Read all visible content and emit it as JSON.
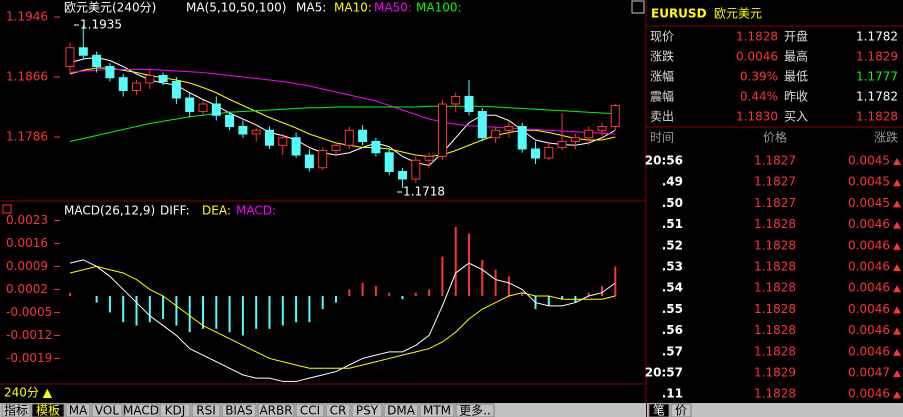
{
  "chart": {
    "title": "欧元美元(240分)",
    "indicator": "MA(5,10,50,100)",
    "ma_labels": [
      "MA5:",
      "MA10:",
      "MA50:",
      "MA100:"
    ],
    "yticks": [
      1.1946,
      1.1866,
      1.1786
    ],
    "high_label": "1.1935",
    "low_label": "1.1718",
    "candles": [
      [
        1.188,
        1.1912,
        1.187,
        1.1905
      ],
      [
        1.1905,
        1.1935,
        1.189,
        1.1895
      ],
      [
        1.1895,
        1.19,
        1.1872,
        1.188
      ],
      [
        1.188,
        1.1885,
        1.186,
        1.1865
      ],
      [
        1.1865,
        1.187,
        1.184,
        1.1848
      ],
      [
        1.1848,
        1.1862,
        1.1842,
        1.1858
      ],
      [
        1.1858,
        1.1875,
        1.185,
        1.1868
      ],
      [
        1.1868,
        1.1872,
        1.1855,
        1.186
      ],
      [
        1.186,
        1.1866,
        1.183,
        1.1838
      ],
      [
        1.1838,
        1.1845,
        1.1812,
        1.182
      ],
      [
        1.182,
        1.1835,
        1.1815,
        1.183
      ],
      [
        1.183,
        1.184,
        1.1808,
        1.1815
      ],
      [
        1.1815,
        1.182,
        1.1795,
        1.18
      ],
      [
        1.18,
        1.1808,
        1.1785,
        1.179
      ],
      [
        1.179,
        1.1798,
        1.178,
        1.1795
      ],
      [
        1.1795,
        1.18,
        1.177,
        1.1775
      ],
      [
        1.1775,
        1.179,
        1.1762,
        1.1785
      ],
      [
        1.1785,
        1.1792,
        1.1758,
        1.1762
      ],
      [
        1.1762,
        1.177,
        1.174,
        1.1745
      ],
      [
        1.1745,
        1.1772,
        1.1742,
        1.1768
      ],
      [
        1.1768,
        1.178,
        1.176,
        1.1775
      ],
      [
        1.1775,
        1.18,
        1.177,
        1.1795
      ],
      [
        1.1795,
        1.1802,
        1.1775,
        1.178
      ],
      [
        1.178,
        1.1785,
        1.176,
        1.1765
      ],
      [
        1.1765,
        1.177,
        1.1735,
        1.174
      ],
      [
        1.174,
        1.1745,
        1.1718,
        1.173
      ],
      [
        1.173,
        1.176,
        1.1725,
        1.1755
      ],
      [
        1.1755,
        1.1765,
        1.1745,
        1.176
      ],
      [
        1.176,
        1.1835,
        1.1755,
        1.183
      ],
      [
        1.183,
        1.1845,
        1.182,
        1.184
      ],
      [
        1.184,
        1.1862,
        1.1815,
        1.182
      ],
      [
        1.182,
        1.1825,
        1.178,
        1.1785
      ],
      [
        1.1785,
        1.18,
        1.1778,
        1.1795
      ],
      [
        1.1795,
        1.1808,
        1.1785,
        1.18
      ],
      [
        1.18,
        1.1805,
        1.1765,
        1.177
      ],
      [
        1.177,
        1.178,
        1.175,
        1.1758
      ],
      [
        1.1758,
        1.1778,
        1.1755,
        1.1772
      ],
      [
        1.1772,
        1.1818,
        1.1768,
        1.178
      ],
      [
        1.178,
        1.179,
        1.177,
        1.1785
      ],
      [
        1.1785,
        1.18,
        1.1775,
        1.1795
      ],
      [
        1.1795,
        1.1805,
        1.1788,
        1.18
      ],
      [
        1.18,
        1.183,
        1.1795,
        1.1828
      ]
    ],
    "ma": [
      {
        "color": "#ffffff",
        "values": [
          1.1885,
          1.189,
          1.1892,
          1.1888,
          1.188,
          1.187,
          1.1862,
          1.1858,
          1.1855,
          1.1845,
          1.1836,
          1.1828,
          1.1818,
          1.181,
          1.1802,
          1.1792,
          1.1788,
          1.1782,
          1.1772,
          1.1765,
          1.1762,
          1.1765,
          1.1772,
          1.1778,
          1.1773,
          1.176,
          1.1752,
          1.1748,
          1.1765,
          1.1785,
          1.1805,
          1.1815,
          1.1815,
          1.1808,
          1.1795,
          1.1782,
          1.1778,
          1.1776,
          1.1775,
          1.1778,
          1.1785,
          1.1795
        ]
      },
      {
        "color": "#ffff00",
        "values": [
          1.187,
          1.1875,
          1.1878,
          1.1878,
          1.1875,
          1.1872,
          1.1868,
          1.1865,
          1.1862,
          1.1858,
          1.1852,
          1.1845,
          1.1836,
          1.1828,
          1.182,
          1.1812,
          1.1805,
          1.1798,
          1.179,
          1.1784,
          1.1778,
          1.1775,
          1.1772,
          1.1772,
          1.177,
          1.1766,
          1.1762,
          1.176,
          1.1762,
          1.1768,
          1.1775,
          1.1782,
          1.1788,
          1.1792,
          1.1795,
          1.1795,
          1.1792,
          1.1788,
          1.1784,
          1.1782,
          1.1782,
          1.1786
        ]
      },
      {
        "color": "#ff00ff",
        "values": [
          1.1872,
          1.1874,
          1.1875,
          1.1876,
          1.1876,
          1.1876,
          1.1876,
          1.1875,
          1.1874,
          1.1873,
          1.1872,
          1.187,
          1.1868,
          1.1866,
          1.1864,
          1.1862,
          1.186,
          1.1857,
          1.1854,
          1.185,
          1.1846,
          1.1842,
          1.1838,
          1.1834,
          1.1828,
          1.1822,
          1.1816,
          1.181,
          1.1806,
          1.1803,
          1.1801,
          1.18,
          1.1799,
          1.1798,
          1.1797,
          1.1796,
          1.1795,
          1.1794,
          1.1793,
          1.1792,
          1.1791,
          1.179
        ]
      },
      {
        "color": "#00ff00",
        "values": [
          1.178,
          1.1784,
          1.1788,
          1.1792,
          1.1796,
          1.18,
          1.1804,
          1.1807,
          1.181,
          1.1813,
          1.1815,
          1.1817,
          1.1819,
          1.182,
          1.1821,
          1.1822,
          1.1823,
          1.1824,
          1.1825,
          1.1825,
          1.1826,
          1.1826,
          1.1826,
          1.1826,
          1.1826,
          1.1826,
          1.1826,
          1.1827,
          1.1827,
          1.1827,
          1.1827,
          1.1827,
          1.1826,
          1.1825,
          1.1824,
          1.1823,
          1.1822,
          1.1821,
          1.182,
          1.1819,
          1.1818,
          1.1817
        ]
      }
    ]
  },
  "macd": {
    "title": "MACD(26,12,9)",
    "labels": [
      "DIFF:",
      "DEA:",
      "MACD:"
    ],
    "yticks": [
      0.0023,
      0.0016,
      0.0009,
      0.0002,
      -0.0005,
      -0.0012,
      -0.0019
    ],
    "hist": [
      0.0001,
      0.0,
      -0.0002,
      -0.0005,
      -0.0008,
      -0.0009,
      -0.0008,
      -0.0007,
      -0.0009,
      -0.0011,
      -0.001,
      -0.001,
      -0.0011,
      -0.0012,
      -0.001,
      -0.001,
      -0.0009,
      -0.0008,
      -0.0008,
      -0.0004,
      -0.0002,
      0.0002,
      0.0004,
      0.0003,
      0.0001,
      -0.0001,
      0.0001,
      0.0002,
      0.0012,
      0.0021,
      0.0019,
      0.0011,
      0.0008,
      0.0006,
      0.0001,
      -0.0004,
      -0.0003,
      -0.0001,
      -0.0002,
      0.0001,
      0.0003,
      0.0009
    ],
    "diff": [
      0.001,
      0.0011,
      0.0009,
      0.0006,
      0.0002,
      -0.0002,
      -0.0006,
      -0.0009,
      -0.0012,
      -0.0016,
      -0.0018,
      -0.002,
      -0.0022,
      -0.0024,
      -0.0025,
      -0.0025,
      -0.0026,
      -0.0026,
      -0.0025,
      -0.0024,
      -0.0023,
      -0.0021,
      -0.0019,
      -0.0018,
      -0.0017,
      -0.0017,
      -0.0015,
      -0.0012,
      -0.0003,
      0.0007,
      0.001,
      0.0008,
      0.0005,
      0.0004,
      0.0002,
      -0.0002,
      -0.0003,
      -0.0003,
      -0.0002,
      0.0,
      0.0001,
      0.0004
    ],
    "dea": [
      0.0007,
      0.0008,
      0.0009,
      0.0008,
      0.0007,
      0.0005,
      0.0002,
      0.0,
      -0.0003,
      -0.0006,
      -0.0009,
      -0.0011,
      -0.0013,
      -0.0015,
      -0.0017,
      -0.0019,
      -0.002,
      -0.0021,
      -0.0022,
      -0.0022,
      -0.0022,
      -0.0022,
      -0.0021,
      -0.002,
      -0.0019,
      -0.0018,
      -0.0017,
      -0.0016,
      -0.0014,
      -0.0011,
      -0.0007,
      -0.0004,
      -0.0002,
      0.0,
      0.0001,
      0.0,
      0.0,
      -0.0001,
      -0.0001,
      -0.0001,
      -0.0001,
      0.0
    ]
  },
  "period": "240分 ▲",
  "tabs": [
    "指标",
    "模板",
    "MA",
    "VOL",
    "MACD",
    "KDJ",
    "RSI",
    "BIAS",
    "ARBR",
    "CCI",
    "CR",
    "PSY",
    "DMA",
    "MTM",
    "更多.."
  ],
  "quote": {
    "symbol": "EURUSD",
    "name": "欧元美元",
    "rows": [
      [
        "现价",
        "1.1828",
        "开盘",
        "1.1782"
      ],
      [
        "涨跌",
        "0.0046",
        "最高",
        "1.1829"
      ],
      [
        "涨幅",
        "0.39%",
        "最低",
        "1.1777"
      ],
      [
        "震幅",
        "0.44%",
        "昨收",
        "1.1782"
      ],
      [
        "卖出",
        "1.1830",
        "买入",
        "1.1828"
      ]
    ]
  },
  "trades": {
    "headers": [
      "时间",
      "价格",
      "涨跌"
    ],
    "rows": [
      [
        "20:56",
        "1.1827",
        "0.0045"
      ],
      [
        ".49",
        "1.1827",
        "0.0045"
      ],
      [
        ".50",
        "1.1827",
        "0.0045"
      ],
      [
        ".51",
        "1.1828",
        "0.0046"
      ],
      [
        ".52",
        "1.1828",
        "0.0046"
      ],
      [
        ".53",
        "1.1828",
        "0.0046"
      ],
      [
        ".54",
        "1.1828",
        "0.0046"
      ],
      [
        ".55",
        "1.1828",
        "0.0046"
      ],
      [
        ".56",
        "1.1828",
        "0.0046"
      ],
      [
        ".57",
        "1.1828",
        "0.0046"
      ],
      [
        "20:57",
        "1.1829",
        "0.0047"
      ],
      [
        ".11",
        "1.1828",
        "0.0046"
      ]
    ]
  },
  "side_tabs": [
    "笔",
    "价"
  ]
}
